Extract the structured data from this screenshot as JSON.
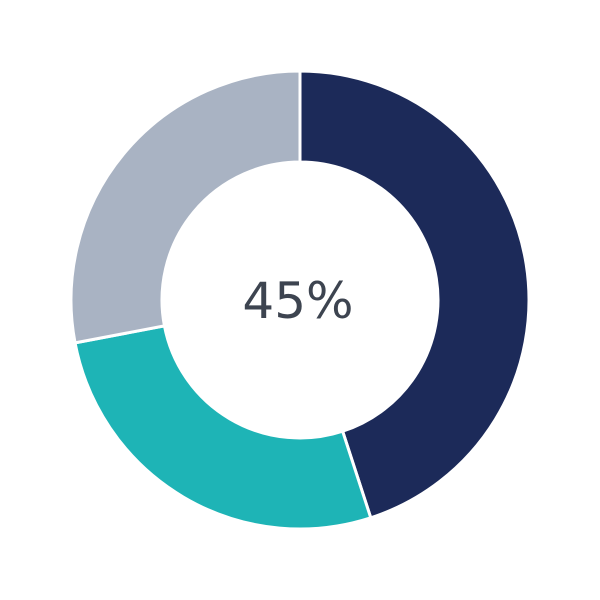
{
  "chart_data": {
    "type": "pie",
    "donut": true,
    "center_label": "45%",
    "slices": [
      {
        "value": 45,
        "color": "#1c2a59"
      },
      {
        "value": 27,
        "color": "#1eb4b6"
      },
      {
        "value": 28,
        "color": "#a9b3c3"
      }
    ],
    "start_angle_deg": 0,
    "direction": "clockwise"
  }
}
